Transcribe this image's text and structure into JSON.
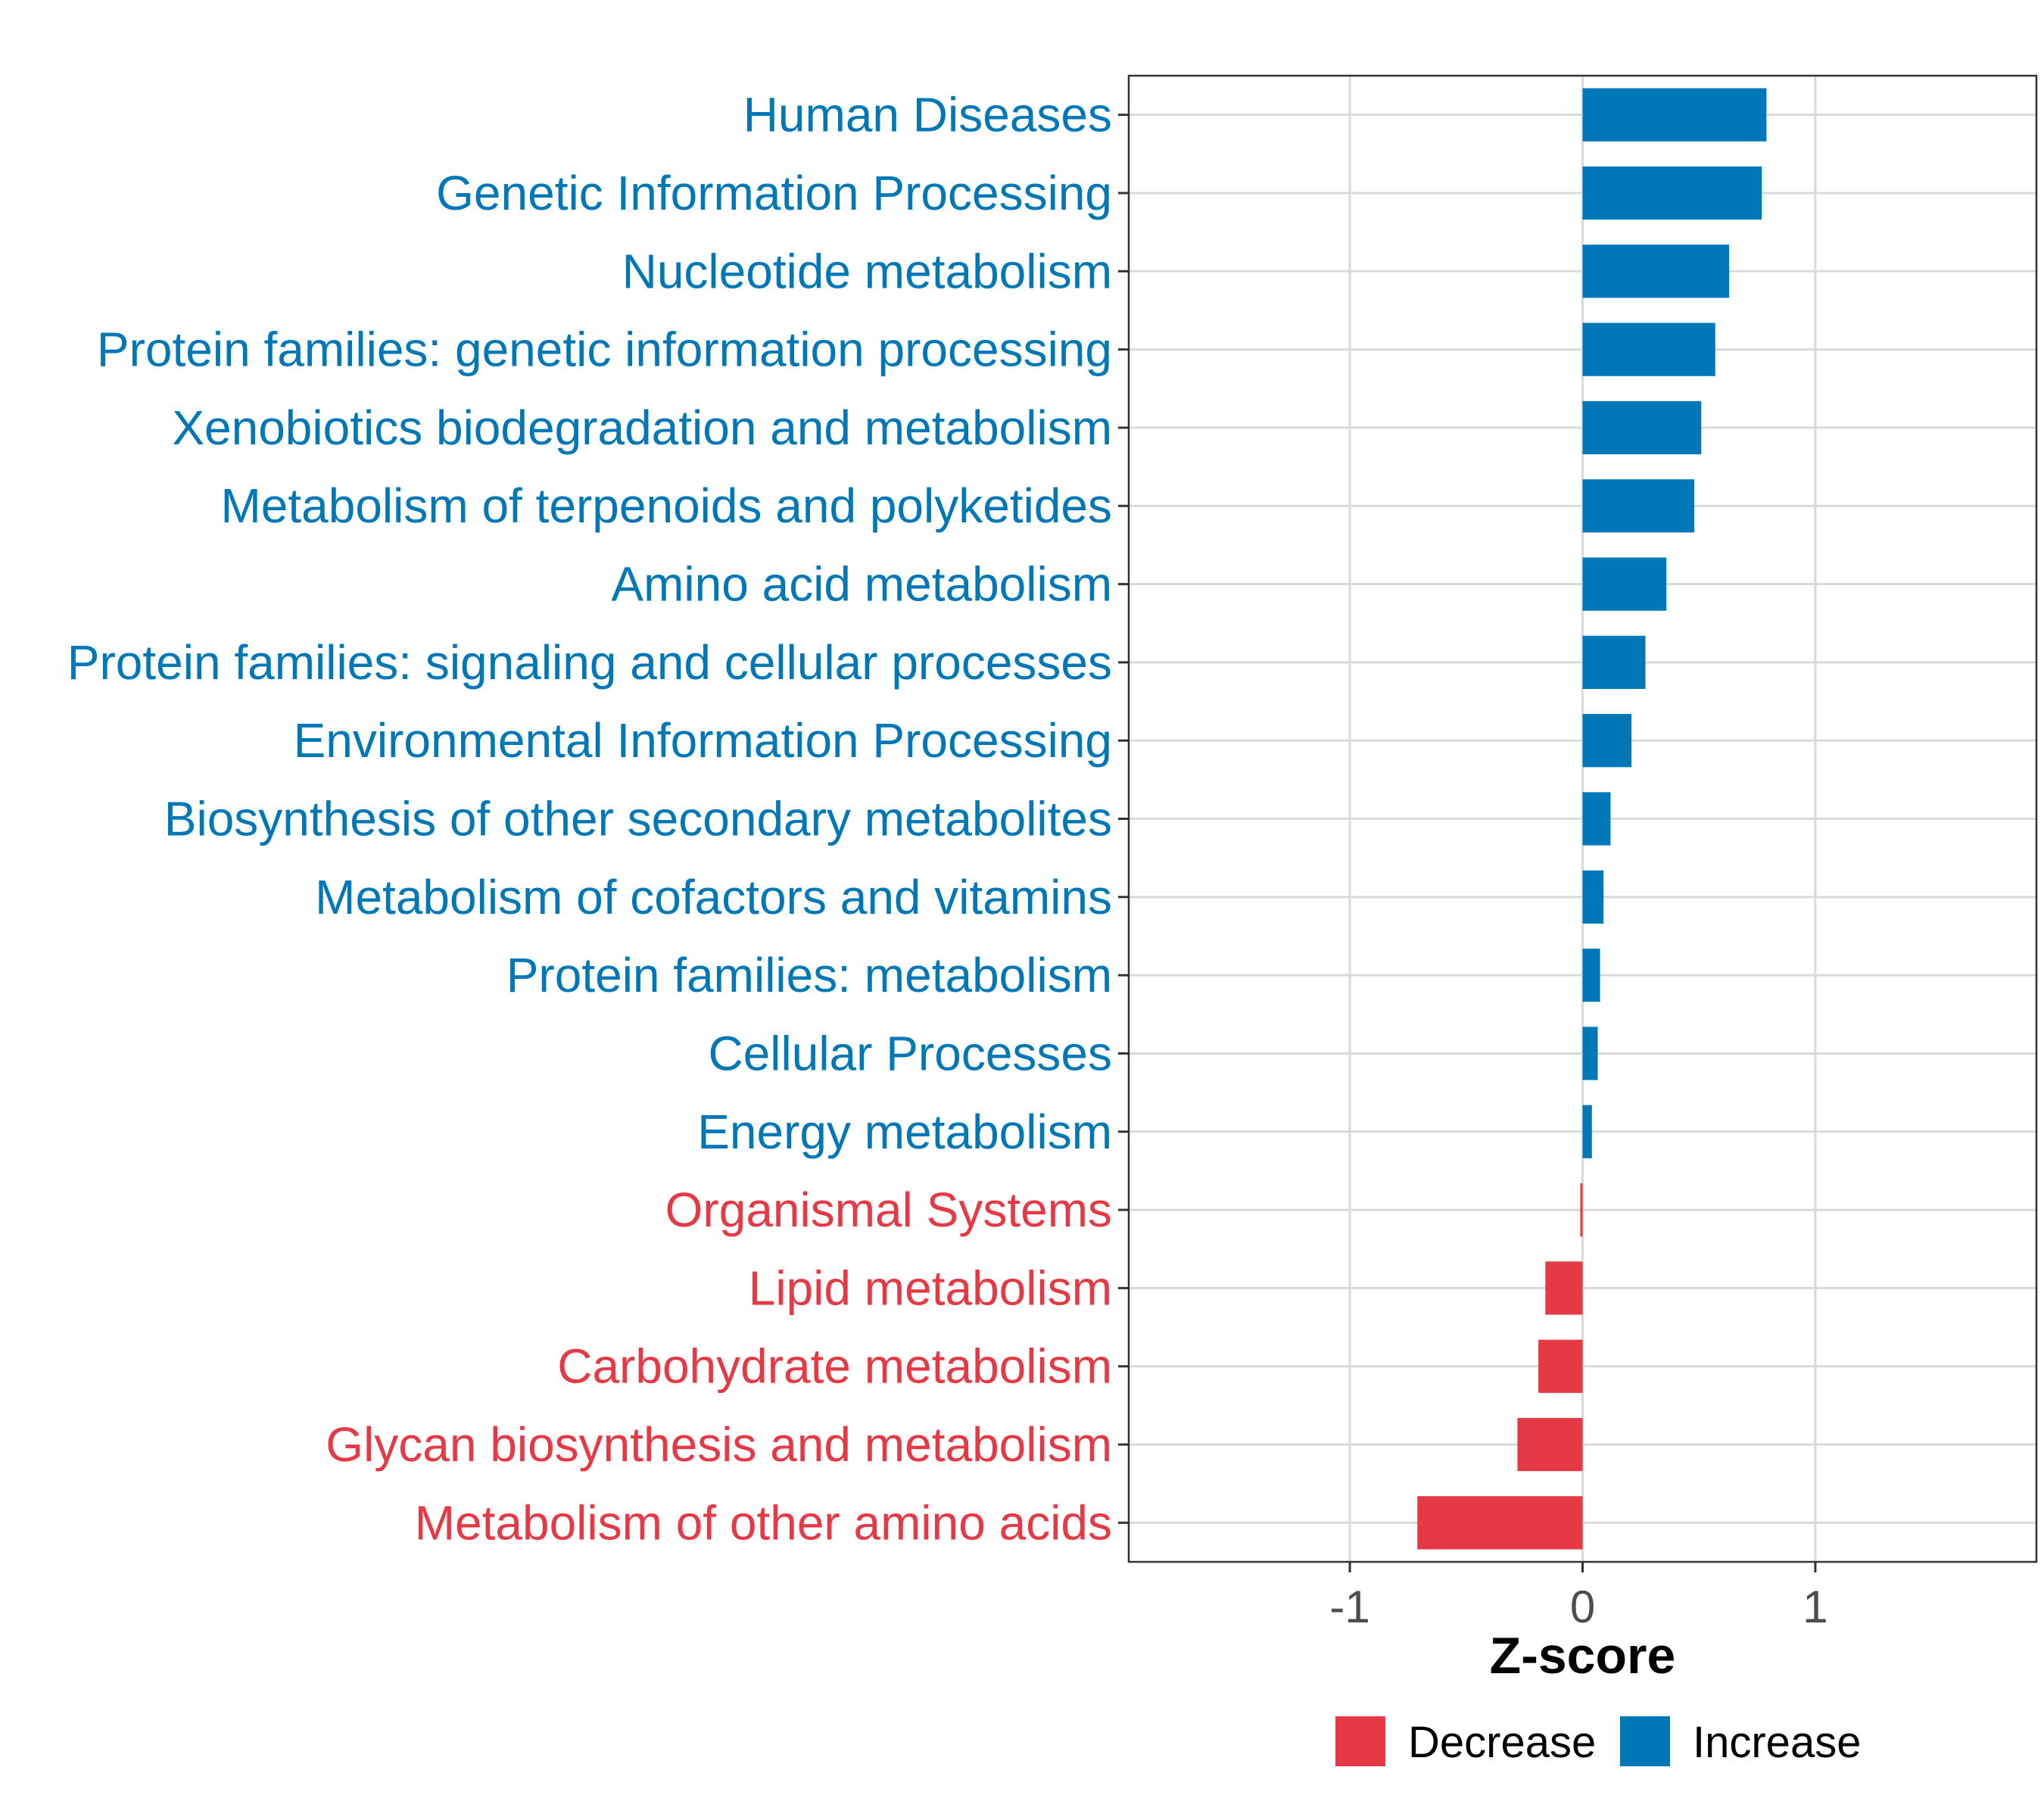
{
  "chart_data": {
    "type": "bar",
    "orientation": "horizontal",
    "title": "",
    "xlabel": "Z-score",
    "ylabel": "",
    "xlim": [
      -1.95,
      1.95
    ],
    "xticks": [
      {
        "value": -1,
        "label": "-1"
      },
      {
        "value": 0,
        "label": "0"
      },
      {
        "value": 1,
        "label": "1"
      }
    ],
    "grid": true,
    "categories": [
      "Human Diseases",
      "Genetic Information Processing",
      "Nucleotide metabolism",
      "Protein families: genetic information processing",
      "Xenobiotics biodegradation and metabolism",
      "Metabolism of terpenoids and polyketides",
      "Amino acid metabolism",
      "Protein families: signaling and cellular processes",
      "Environmental Information Processing",
      "Biosynthesis of other secondary metabolites",
      "Metabolism of cofactors and vitamins",
      "Protein families: metabolism",
      "Cellular Processes",
      "Energy metabolism",
      "Organismal Systems",
      "Lipid metabolism",
      "Carbohydrate metabolism",
      "Glycan biosynthesis and metabolism",
      "Metabolism of other amino acids"
    ],
    "values": [
      0.79,
      0.77,
      0.63,
      0.57,
      0.51,
      0.48,
      0.36,
      0.27,
      0.21,
      0.12,
      0.09,
      0.075,
      0.065,
      0.04,
      -0.01,
      -0.16,
      -0.19,
      -0.28,
      -0.71
    ],
    "groups": [
      "Increase",
      "Increase",
      "Increase",
      "Increase",
      "Increase",
      "Increase",
      "Increase",
      "Increase",
      "Increase",
      "Increase",
      "Increase",
      "Increase",
      "Increase",
      "Increase",
      "Decrease",
      "Decrease",
      "Decrease",
      "Decrease",
      "Decrease"
    ],
    "legend": {
      "position": "bottom",
      "items": [
        {
          "label": "Decrease",
          "color": "#e63946"
        },
        {
          "label": "Increase",
          "color": "#0077b6"
        }
      ]
    },
    "colors": {
      "Decrease": "#e63946",
      "Increase": "#0077b6"
    }
  }
}
